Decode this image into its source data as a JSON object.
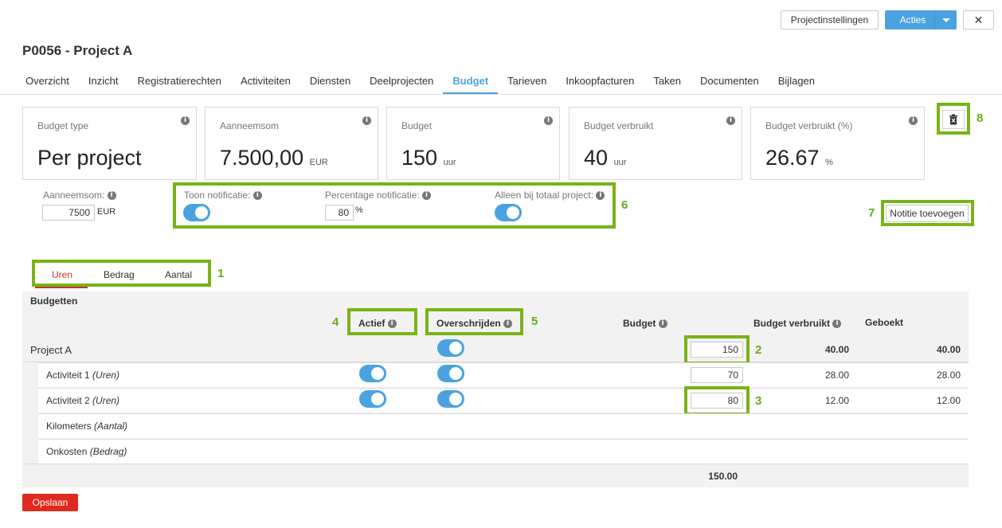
{
  "header": {
    "settings_button": "Projectinstellingen",
    "actions_button": "Acties",
    "close_symbol": "✕",
    "title": "P0056 - Project A"
  },
  "tabs": [
    {
      "label": "Overzicht"
    },
    {
      "label": "Inzicht"
    },
    {
      "label": "Registratierechten"
    },
    {
      "label": "Activiteiten"
    },
    {
      "label": "Diensten"
    },
    {
      "label": "Deelprojecten"
    },
    {
      "label": "Budget",
      "active": true
    },
    {
      "label": "Tarieven"
    },
    {
      "label": "Inkoopfacturen"
    },
    {
      "label": "Taken"
    },
    {
      "label": "Documenten"
    },
    {
      "label": "Bijlagen"
    }
  ],
  "cards": [
    {
      "label": "Budget type",
      "value": "Per project",
      "unit": ""
    },
    {
      "label": "Aanneemsom",
      "value": "7.500,00",
      "unit": "EUR"
    },
    {
      "label": "Budget",
      "value": "150",
      "unit": "uur"
    },
    {
      "label": "Budget verbruikt",
      "value": "40",
      "unit": "uur"
    },
    {
      "label": "Budget verbruikt (%)",
      "value": "26.67",
      "unit": "%"
    }
  ],
  "settings": {
    "aanneemsom_label": "Aanneemsom:",
    "aanneemsom_value": "7500",
    "aanneemsom_unit": "EUR",
    "toon_notificatie_label": "Toon notificatie:",
    "toon_notificatie_on": true,
    "percentage_label": "Percentage notificatie:",
    "percentage_value": "80",
    "percentage_unit": "%",
    "alleen_totaal_label": "Alleen bij totaal project:",
    "alleen_totaal_on": true,
    "note_button": "Notitie toevoegen"
  },
  "subtabs": [
    {
      "label": "Uren",
      "active": true
    },
    {
      "label": "Bedrag"
    },
    {
      "label": "Aantal"
    }
  ],
  "grid": {
    "section_title": "Budgetten",
    "col_actief": "Actief",
    "col_overschrijden": "Overschrijden",
    "col_budget": "Budget",
    "col_verbruikt": "Budget verbruikt",
    "col_geboekt": "Geboekt",
    "rows": [
      {
        "name": "Project A",
        "type": "",
        "actief": null,
        "overschrijden": true,
        "budget": "150",
        "verbruikt": "40.00",
        "geboekt": "40.00"
      },
      {
        "name": "Activiteit 1",
        "type": "(Uren)",
        "actief": true,
        "overschrijden": true,
        "budget": "70",
        "verbruikt": "28.00",
        "geboekt": "28.00"
      },
      {
        "name": "Activiteit 2",
        "type": "(Uren)",
        "actief": true,
        "overschrijden": true,
        "budget": "80",
        "verbruikt": "12.00",
        "geboekt": "12.00"
      },
      {
        "name": "Kilometers",
        "type": "(Aantal)"
      },
      {
        "name": "Onkosten",
        "type": "(Bedrag)"
      }
    ],
    "total": "150.00"
  },
  "annotations": [
    "1",
    "2",
    "3",
    "4",
    "5",
    "6",
    "7",
    "8"
  ],
  "save_button": "Opslaan",
  "colors": {
    "accent": "#4aa3df",
    "annotation": "#7ab317",
    "danger": "#e02a1f",
    "active_subtab": "#c0392b"
  }
}
